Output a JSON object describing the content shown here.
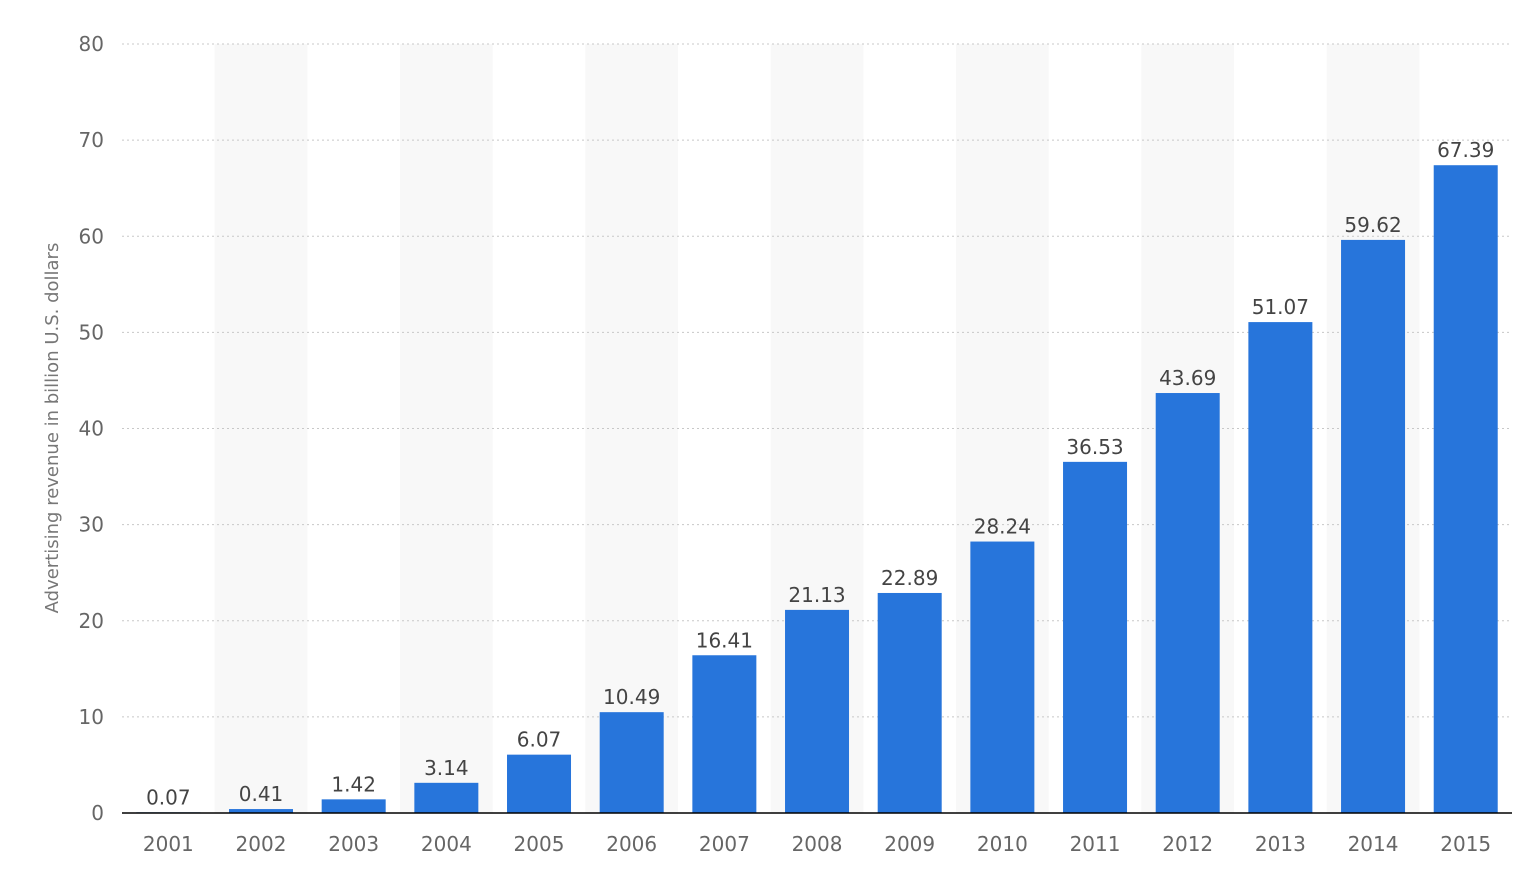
{
  "chart_data": {
    "type": "bar",
    "title": "",
    "xlabel": "",
    "ylabel": "Advertising revenue in billion U.S. dollars",
    "categories": [
      "2001",
      "2002",
      "2003",
      "2004",
      "2005",
      "2006",
      "2007",
      "2008",
      "2009",
      "2010",
      "2011",
      "2012",
      "2013",
      "2014",
      "2015"
    ],
    "values": [
      0.07,
      0.41,
      1.42,
      3.14,
      6.07,
      10.49,
      16.41,
      21.13,
      22.89,
      28.24,
      36.53,
      43.69,
      51.07,
      59.62,
      67.39
    ],
    "value_labels": [
      "0.07",
      "0.41",
      "1.42",
      "3.14",
      "6.07",
      "10.49",
      "16.41",
      "21.13",
      "22.89",
      "28.24",
      "36.53",
      "43.69",
      "51.07",
      "59.62",
      "67.39"
    ],
    "ylim": [
      0,
      80
    ],
    "yticks": [
      0,
      10,
      20,
      30,
      40,
      50,
      60,
      70,
      80
    ],
    "ytick_labels": [
      "0",
      "10",
      "20",
      "30",
      "40",
      "50",
      "60",
      "70",
      "80"
    ],
    "grid": true,
    "grid_style": "dotted",
    "alternating_column_bands": true,
    "legend": "none",
    "colors": {
      "bar": "#2775db",
      "band": "#f8f8f8",
      "grid": "#c8c8c8",
      "axis": "#000000"
    }
  }
}
